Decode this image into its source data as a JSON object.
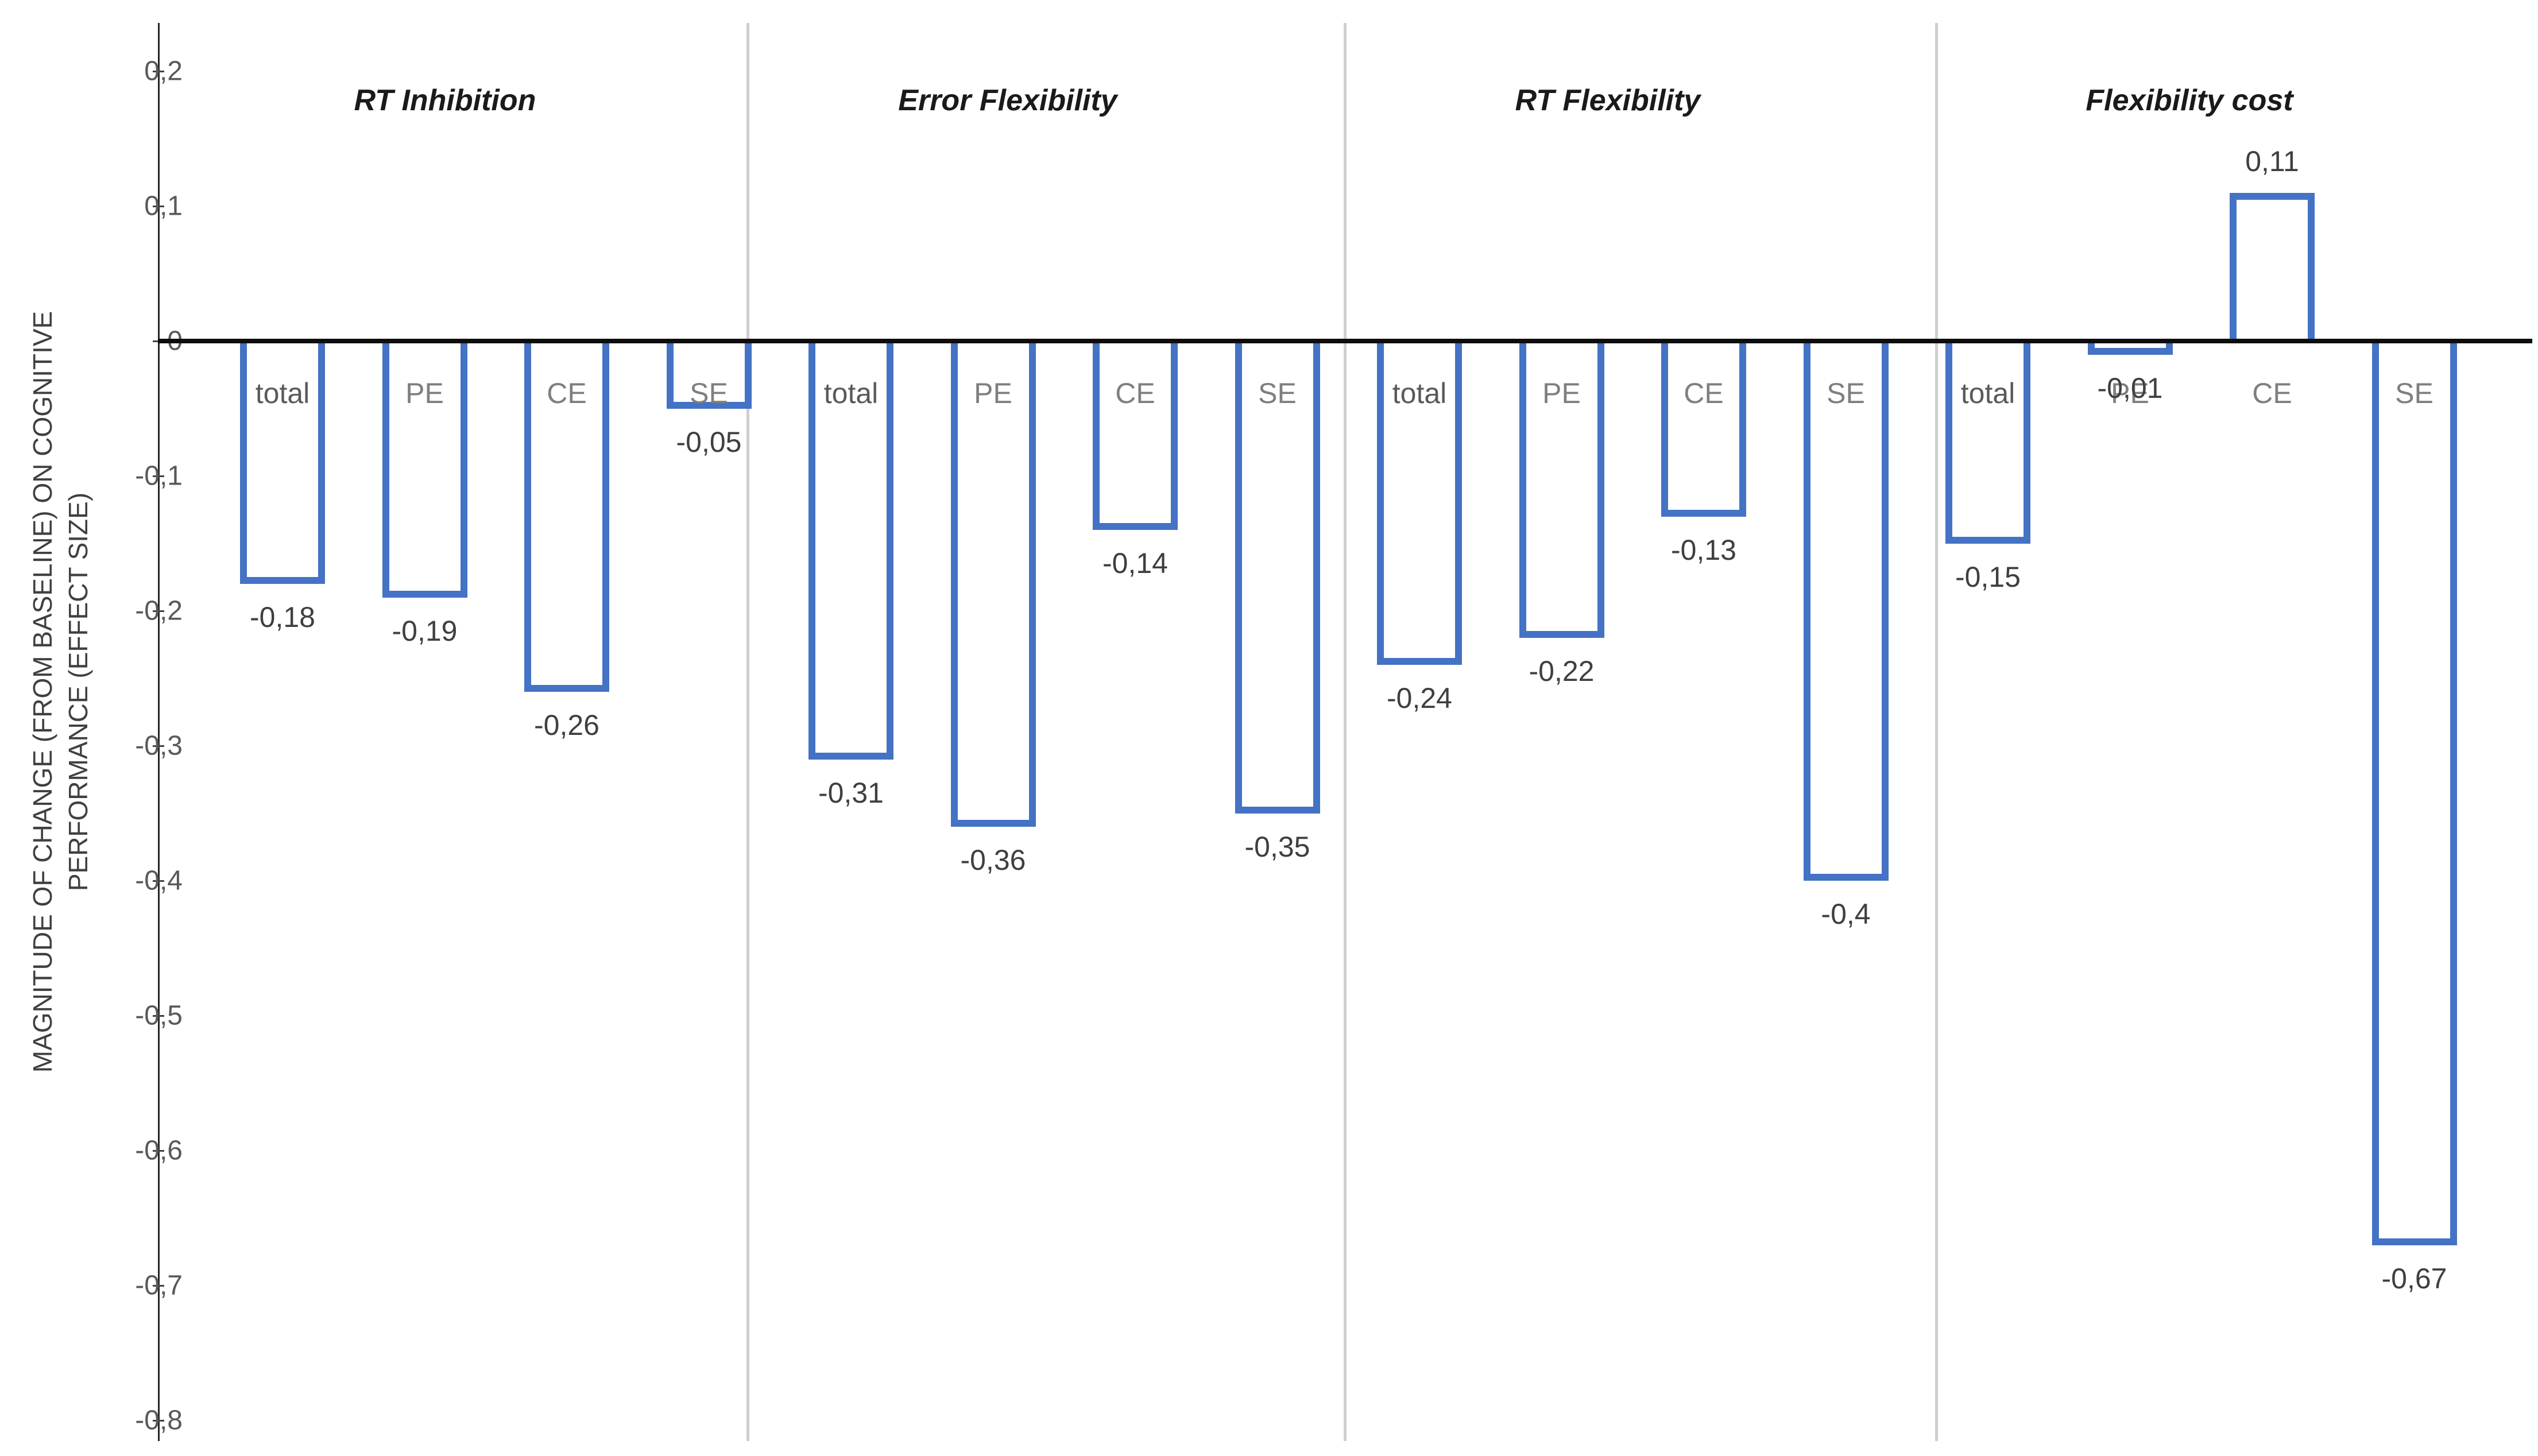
{
  "chart_data": {
    "type": "bar",
    "title": "",
    "ylabel_lines": [
      "MAGNITUDE OF CHANGE (FROM BASELINE) ON COGNITIVE",
      "PERFORMANCE (EFFECT SIZE)"
    ],
    "ylim": [
      -0.8,
      0.2
    ],
    "grid": "off",
    "legend": "none",
    "decimal_separator": ",",
    "yticks": [
      {
        "value": 0.2,
        "label": "0,2"
      },
      {
        "value": 0.1,
        "label": "0,1"
      },
      {
        "value": 0.0,
        "label": "0"
      },
      {
        "value": -0.1,
        "label": "-0,1"
      },
      {
        "value": -0.2,
        "label": "-0,2"
      },
      {
        "value": -0.3,
        "label": "-0,3"
      },
      {
        "value": -0.4,
        "label": "-0,4"
      },
      {
        "value": -0.5,
        "label": "-0,5"
      },
      {
        "value": -0.6,
        "label": "-0,6"
      },
      {
        "value": -0.7,
        "label": "-0,7"
      },
      {
        "value": -0.8,
        "label": "-0,8"
      }
    ],
    "groups": [
      {
        "title": "RT Inhibition",
        "bars": [
          {
            "category": "total",
            "value": -0.18,
            "value_label": "-0,18"
          },
          {
            "category": "PE",
            "value": -0.19,
            "value_label": "-0,19"
          },
          {
            "category": "CE",
            "value": -0.26,
            "value_label": "-0,26"
          },
          {
            "category": "SE",
            "value": -0.05,
            "value_label": "-0,05"
          }
        ]
      },
      {
        "title": "Error Flexibility",
        "bars": [
          {
            "category": "total",
            "value": -0.31,
            "value_label": "-0,31"
          },
          {
            "category": "PE",
            "value": -0.36,
            "value_label": "-0,36"
          },
          {
            "category": "CE",
            "value": -0.14,
            "value_label": "-0,14"
          },
          {
            "category": "SE",
            "value": -0.35,
            "value_label": "-0,35"
          }
        ]
      },
      {
        "title": "RT Flexibility",
        "bars": [
          {
            "category": "total",
            "value": -0.24,
            "value_label": "-0,24"
          },
          {
            "category": "PE",
            "value": -0.22,
            "value_label": "-0,22"
          },
          {
            "category": "CE",
            "value": -0.13,
            "value_label": "-0,13"
          },
          {
            "category": "SE",
            "value": -0.4,
            "value_label": "-0,4"
          }
        ]
      },
      {
        "title": "Flexibility cost",
        "bars": [
          {
            "category": "total",
            "value": -0.15,
            "value_label": "-0,15"
          },
          {
            "category": "PE",
            "value": -0.01,
            "value_label": "-0,01"
          },
          {
            "category": "CE",
            "value": 0.11,
            "value_label": "0,11"
          },
          {
            "category": "SE",
            "value": -0.67,
            "value_label": "-0,67"
          }
        ]
      }
    ],
    "colors": {
      "bar_border": "#4472c4",
      "bar_fill": "#ffffff",
      "zero_line": "#0d0d0d",
      "axis_line": "#262626",
      "divider": "#cfcfcf",
      "tick_label": "#595959",
      "value_label": "#3f3f3f",
      "category_label_total": "#595959",
      "category_label_other": "#7f7f7f",
      "panel_title": "#1a1a1a"
    }
  }
}
